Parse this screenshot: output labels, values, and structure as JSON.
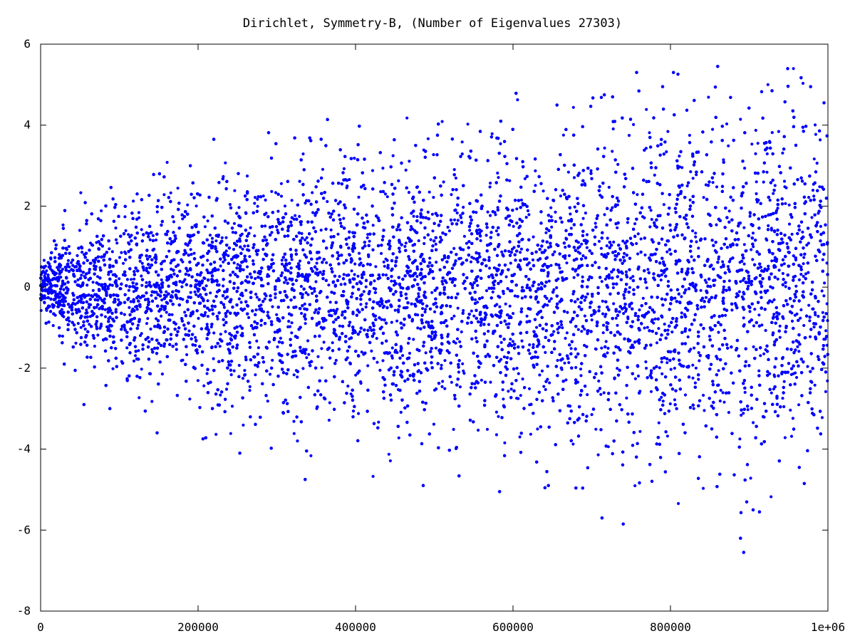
{
  "chart_data": {
    "type": "scatter",
    "title": "Dirichlet, Symmetry-B, (Number of Eigenvalues 27303)",
    "xlabel": "",
    "ylabel": "",
    "xlim": [
      0,
      1000000
    ],
    "ylim": [
      -8,
      6
    ],
    "grid": false,
    "legend": "none",
    "point_color": "#0000ff",
    "x_ticks": [
      {
        "value": 0,
        "label": "0"
      },
      {
        "value": 200000,
        "label": "200000"
      },
      {
        "value": 400000,
        "label": "400000"
      },
      {
        "value": 600000,
        "label": "600000"
      },
      {
        "value": 800000,
        "label": "800000"
      },
      {
        "value": 1000000,
        "label": "1e+06"
      }
    ],
    "y_ticks": [
      {
        "value": 6,
        "label": "6"
      },
      {
        "value": 4,
        "label": "4"
      },
      {
        "value": 2,
        "label": "2"
      },
      {
        "value": 0,
        "label": "0"
      },
      {
        "value": -2,
        "label": "-2"
      },
      {
        "value": -4,
        "label": "-4"
      },
      {
        "value": -6,
        "label": "-6"
      },
      {
        "value": -8,
        "label": "-8"
      }
    ],
    "point_count": 27303,
    "envelope": [
      {
        "x": 0,
        "low": -0.6,
        "high": 0.8
      },
      {
        "x": 50000,
        "low": -2.3,
        "high": 2.2
      },
      {
        "x": 100000,
        "low": -2.8,
        "high": 2.6
      },
      {
        "x": 150000,
        "low": -3.3,
        "high": 2.9
      },
      {
        "x": 200000,
        "low": -3.5,
        "high": 3.2
      },
      {
        "x": 300000,
        "low": -4.0,
        "high": 3.5
      },
      {
        "x": 400000,
        "low": -4.0,
        "high": 3.9
      },
      {
        "x": 500000,
        "low": -4.5,
        "high": 4.1
      },
      {
        "x": 600000,
        "low": -4.6,
        "high": 4.3
      },
      {
        "x": 700000,
        "low": -5.0,
        "high": 4.5
      },
      {
        "x": 800000,
        "low": -5.3,
        "high": 4.7
      },
      {
        "x": 900000,
        "low": -5.8,
        "high": 4.8
      },
      {
        "x": 1000000,
        "low": -5.5,
        "high": 4.9
      }
    ],
    "extremes": [
      {
        "x": 30000,
        "y": -1.9
      },
      {
        "x": 55000,
        "y": -2.9
      },
      {
        "x": 88000,
        "y": -3.0
      },
      {
        "x": 148000,
        "y": -3.6
      },
      {
        "x": 220000,
        "y": 3.65
      },
      {
        "x": 253000,
        "y": -4.1
      },
      {
        "x": 336000,
        "y": -4.75
      },
      {
        "x": 486000,
        "y": -4.9
      },
      {
        "x": 583000,
        "y": -5.05
      },
      {
        "x": 645000,
        "y": -4.9
      },
      {
        "x": 713000,
        "y": -5.7
      },
      {
        "x": 716000,
        "y": 4.75
      },
      {
        "x": 740000,
        "y": -5.85
      },
      {
        "x": 757000,
        "y": 5.3
      },
      {
        "x": 790000,
        "y": 4.95
      },
      {
        "x": 860000,
        "y": 5.45
      },
      {
        "x": 889000,
        "y": -6.2
      },
      {
        "x": 893000,
        "y": -6.55
      },
      {
        "x": 905000,
        "y": -5.5
      },
      {
        "x": 913000,
        "y": -5.55
      },
      {
        "x": 929000,
        "y": 4.85
      },
      {
        "x": 970000,
        "y": -4.85
      },
      {
        "x": 978000,
        "y": 4.95
      },
      {
        "x": 995000,
        "y": 4.55
      }
    ]
  }
}
